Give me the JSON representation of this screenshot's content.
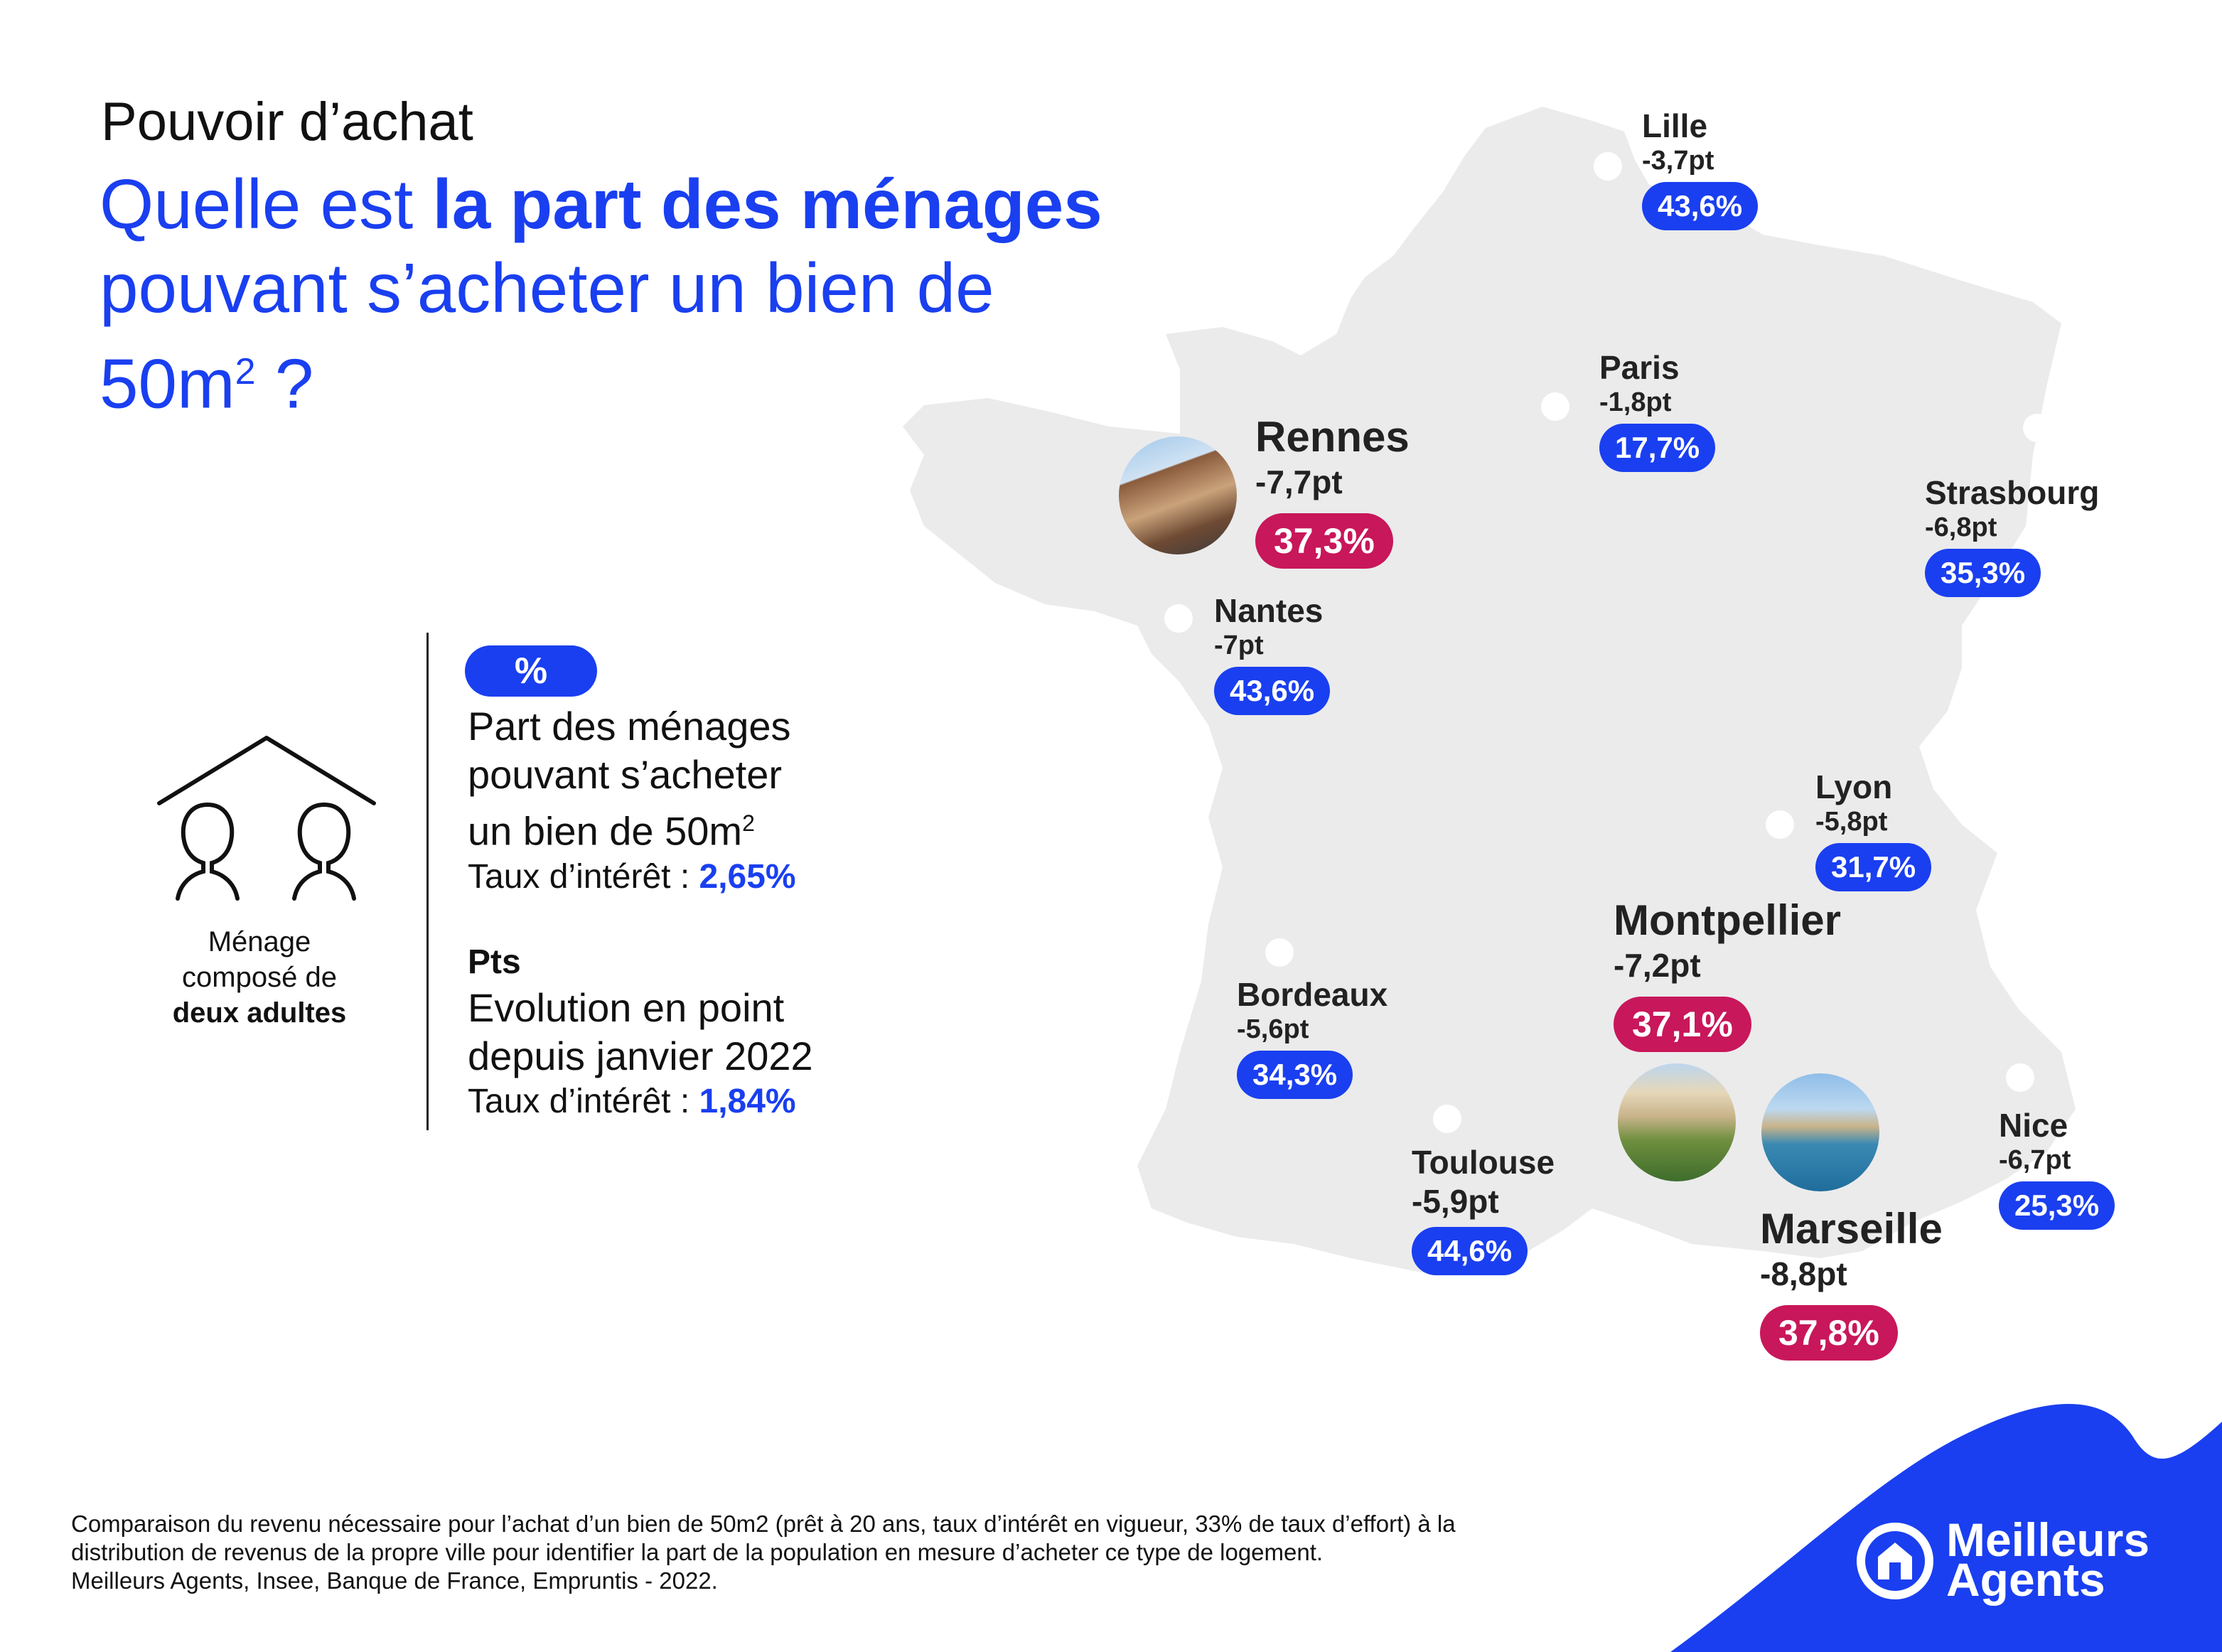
{
  "header": {
    "supertitle": "Pouvoir d’achat",
    "title_part1": "Quelle est ",
    "title_bold": "la part des ménages",
    "title_part2": " pouvant s’acheter un bien de 50m",
    "title_sup": "2",
    "title_end": " ?"
  },
  "map": {
    "country": "France",
    "cities": [
      {
        "name": "Lille",
        "delta": "-3,7pt",
        "share": "43,6%",
        "share_value": 43.6,
        "highlight": false
      },
      {
        "name": "Paris",
        "delta": "-1,8pt",
        "share": "17,7%",
        "share_value": 17.7,
        "highlight": false
      },
      {
        "name": "Strasbourg",
        "delta": "-6,8pt",
        "share": "35,3%",
        "share_value": 35.3,
        "highlight": false
      },
      {
        "name": "Rennes",
        "delta": "-7,7pt",
        "share": "37,3%",
        "share_value": 37.3,
        "highlight": true
      },
      {
        "name": "Nantes",
        "delta": "-7pt",
        "share": "43,6%",
        "share_value": 43.6,
        "highlight": false
      },
      {
        "name": "Lyon",
        "delta": "-5,8pt",
        "share": "31,7%",
        "share_value": 31.7,
        "highlight": false
      },
      {
        "name": "Montpellier",
        "delta": "-7,2pt",
        "share": "37,1%",
        "share_value": 37.1,
        "highlight": true
      },
      {
        "name": "Bordeaux",
        "delta": "-5,6pt",
        "share": "34,3%",
        "share_value": 34.3,
        "highlight": false
      },
      {
        "name": "Toulouse",
        "delta": "-5,9pt",
        "share": "44,6%",
        "share_value": 44.6,
        "highlight": false
      },
      {
        "name": "Marseille",
        "delta": "-8,8pt",
        "share": "37,8%",
        "share_value": 37.8,
        "highlight": true
      },
      {
        "name": "Nice",
        "delta": "-6,7pt",
        "share": "25,3%",
        "share_value": 25.3,
        "highlight": false
      }
    ]
  },
  "legend": {
    "household_icon": "two-adults-house-icon",
    "household_line1": "Ménage",
    "household_line2": "composé de",
    "household_bold": "deux adultes",
    "pct_symbol": "%",
    "pct_desc_line1": "Part des ménages",
    "pct_desc_line2": "pouvant s’acheter",
    "pct_desc_line3": "un bien de 50m",
    "pct_desc_sup": "2",
    "rate_label": "Taux d’intérêt : ",
    "rate_2022_now": "2,65%",
    "pts_symbol": "Pts",
    "pts_desc_line1": "Evolution en point",
    "pts_desc_line2": "depuis janvier 2022",
    "rate_jan_2022": "1,84%"
  },
  "footnote": {
    "line1": "Comparaison du revenu nécessaire pour l’achat d’un bien de 50m2 (prêt à 20 ans, taux d’intérêt en vigueur, 33% de taux d’effort) à la",
    "line2": "distribution de revenus de la propre ville pour identifier la part de la population en mesure d’acheter ce type de logement.",
    "line3": "Meilleurs Agents, Insee, Banque de France, Empruntis - 2022."
  },
  "brand": {
    "line1": "Meilleurs",
    "line2": "Agents",
    "logo_icon": "house-in-circle-icon"
  },
  "colors": {
    "accent_blue": "#1a3ff0",
    "accent_red": "#c8175a",
    "map_gray": "#ebebec"
  }
}
